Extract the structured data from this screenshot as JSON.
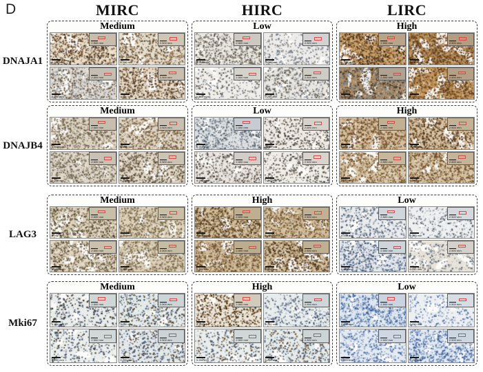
{
  "figure": {
    "panel_label": "D",
    "type": "immunohistochemistry-panel",
    "accent_roi_color": "#d84a4a",
    "dashed_border_color": "#3c3c3c"
  },
  "columns": [
    {
      "label": "MIRC"
    },
    {
      "label": "HIRC"
    },
    {
      "label": "LIRC"
    }
  ],
  "scale": {
    "tile_label": "0.250 mm",
    "inset_label": "2.500 mm"
  },
  "rows": [
    {
      "gene": "DNAJA1",
      "cells": [
        {
          "level": "Medium",
          "tiles": [
            [
              "#e7dcc8",
              "#7a5635",
              "#3d2e1d",
              750,
              6,
              "#c8bcaa"
            ],
            [
              "#e4dccc",
              "#8a6a47",
              "#55432c",
              600,
              7,
              "#cfc5b5"
            ],
            [
              "#ded9d3",
              "#6b5a42",
              "#9aa4ae",
              650,
              9,
              "#c5beb3"
            ],
            [
              "#e5dac6",
              "#79573a",
              "#46311e",
              700,
              5,
              "#cabfae"
            ]
          ]
        },
        {
          "level": "Low",
          "tiles": [
            [
              "#e9e7e1",
              "#5a5348",
              "#8c857a",
              650,
              5,
              "#cdc9c2"
            ],
            [
              "#edecea",
              "#707a8a",
              "#9a958c",
              380,
              7,
              "#d2d2d2"
            ],
            [
              "#f0eeea",
              "#5c564d",
              "#8a92a0",
              300,
              5,
              "#d5d2cc"
            ],
            [
              "#e8e6e1",
              "#60594e",
              "#8f97a2",
              520,
              5,
              "#cfccc6"
            ]
          ]
        },
        {
          "level": "High",
          "tiles": [
            [
              "#c8a06b",
              "#6b431f",
              "#3f2a14",
              800,
              10,
              "#b9a488"
            ],
            [
              "#b88c55",
              "#5a3a1c",
              "#7a5229",
              850,
              12,
              "#b39d80"
            ],
            [
              "#ab8d68",
              "#4f3a20",
              "#76808e",
              800,
              8,
              "#b0a291"
            ],
            [
              "#c2965c",
              "#5c3c1d",
              "#8a5e2e",
              820,
              14,
              "#b5a085"
            ]
          ]
        }
      ]
    },
    {
      "gene": "DNAJB4",
      "cells": [
        {
          "level": "Medium",
          "tiles": [
            [
              "#dcd3c4",
              "#6b5d48",
              "#97876c",
              700,
              5,
              "#c7beb0"
            ],
            [
              "#ded3c2",
              "#6f5c42",
              "#8a6a3e",
              680,
              5,
              "#c9c0b1"
            ],
            [
              "#ddd6c9",
              "#6b5f4c",
              "#9a8c72",
              650,
              4,
              "#c9c2b4"
            ],
            [
              "#e0d6c6",
              "#70604a",
              "#55482f",
              640,
              5,
              "#cbc3b4"
            ]
          ]
        },
        {
          "level": "Low",
          "tiles": [
            [
              "#dde0e2",
              "#55606c",
              "#8d99a4",
              600,
              9,
              "#c6ccd1"
            ],
            [
              "#efeae5",
              "#3f3a33",
              "#7a7268",
              420,
              4,
              "#d6d1cb"
            ],
            [
              "#e9e4df",
              "#4a443c",
              "#8a8278",
              500,
              5,
              "#d2cdc7"
            ],
            [
              "#f0ece7",
              "#44403a",
              "#837b70",
              380,
              4,
              "#d8d3cd"
            ]
          ]
        },
        {
          "level": "High",
          "tiles": [
            [
              "#d3bd9c",
              "#6b4a26",
              "#8a653a",
              750,
              6,
              "#c2b093"
            ],
            [
              "#d6c0a0",
              "#6f4e2a",
              "#4f371c",
              720,
              6,
              "#c4b296"
            ],
            [
              "#d9c6a9",
              "#74552f",
              "#93774c",
              680,
              7,
              "#c7b79c"
            ],
            [
              "#d5c2a4",
              "#6d4d29",
              "#8d6c40",
              700,
              6,
              "#c5b499"
            ]
          ]
        }
      ]
    },
    {
      "gene": "LAG3",
      "cells": [
        {
          "level": "Medium",
          "tiles": [
            [
              "#dcd2bd",
              "#7a6a4e",
              "#55482f",
              650,
              8,
              "#c8bfa9"
            ],
            [
              "#ddd1b9",
              "#76664a",
              "#8f7d5a",
              680,
              6,
              "#c9bfa6"
            ],
            [
              "#dfd4bf",
              "#7b6b4f",
              "#544630",
              640,
              9,
              "#cac0ab"
            ],
            [
              "#d9cdb5",
              "#74644a",
              "#8d7b58",
              660,
              7,
              "#c6bba3"
            ]
          ]
        },
        {
          "level": "High",
          "tiles": [
            [
              "#d0ba97",
              "#6b4f2c",
              "#4a3518",
              780,
              6,
              "#bfae90"
            ],
            [
              "#d3bf9f",
              "#6e522f",
              "#93764a",
              740,
              7,
              "#c1b194"
            ],
            [
              "#cdb795",
              "#684d2b",
              "#8d7046",
              760,
              6,
              "#bdac8e"
            ],
            [
              "#d2bd9d",
              "#6c502d",
              "#46321a",
              750,
              7,
              "#c0b093"
            ]
          ]
        },
        {
          "level": "Low",
          "tiles": [
            [
              "#e9ebec",
              "#4d5d77",
              "#8f98a2",
              420,
              6,
              "#d1d6da"
            ],
            [
              "#edeff0",
              "#555f6d",
              "#9aa2aa",
              300,
              5,
              "#d5d9dc"
            ],
            [
              "#e2e7ec",
              "#46597b",
              "#7e8b9a",
              560,
              5,
              "#cdd4da"
            ],
            [
              "#e7e3da",
              "#5a636f",
              "#9aa0a6",
              300,
              10,
              "#d4d1ca"
            ]
          ]
        }
      ]
    },
    {
      "gene": "Mki67",
      "cells": [
        {
          "level": "Medium",
          "tiles": [
            [
              "#e8ecea",
              "#44506a",
              "#3a3322",
              320,
              4,
              "#cfd6d6"
            ],
            [
              "#e4eaea",
              "#465572",
              "#5a4a2a",
              420,
              4,
              "#ccd4d6"
            ],
            [
              "#eaeeec",
              "#4a5874",
              "#3f3824",
              280,
              4,
              "#d1d8d8"
            ],
            [
              "#e2e8ea",
              "#44536f",
              "#55462a",
              430,
              4,
              "#cbd3d6"
            ]
          ]
        },
        {
          "level": "High",
          "tiles": [
            [
              "#eae4d8",
              "#6a4518",
              "#38250c",
              560,
              4,
              "#d2cabb"
            ],
            [
              "#e7ecec",
              "#4b5a76",
              "#8c96a4",
              360,
              5,
              "#ced6d8"
            ],
            [
              "#e9edec",
              "#4d5c78",
              "#6b5436",
              340,
              4,
              "#d0d7d7"
            ],
            [
              "#e4eaea",
              "#485672",
              "#6b5433",
              420,
              4,
              "#ccd4d6"
            ]
          ]
        },
        {
          "level": "Low",
          "tiles": [
            [
              "#dde6ee",
              "#3f62a0",
              "#7b96bb",
              620,
              4,
              "#c9d4e0"
            ],
            [
              "#ecf0f3",
              "#5574a4",
              "#97a9c2",
              300,
              4,
              "#d6dde4"
            ],
            [
              "#e3eaf1",
              "#4a6ba5",
              "#8ba0bf",
              450,
              4,
              "#cfd8e2"
            ],
            [
              "#dfe8f0",
              "#41639f",
              "#7f98bc",
              660,
              5,
              "#cbd6e1"
            ]
          ]
        }
      ]
    }
  ]
}
